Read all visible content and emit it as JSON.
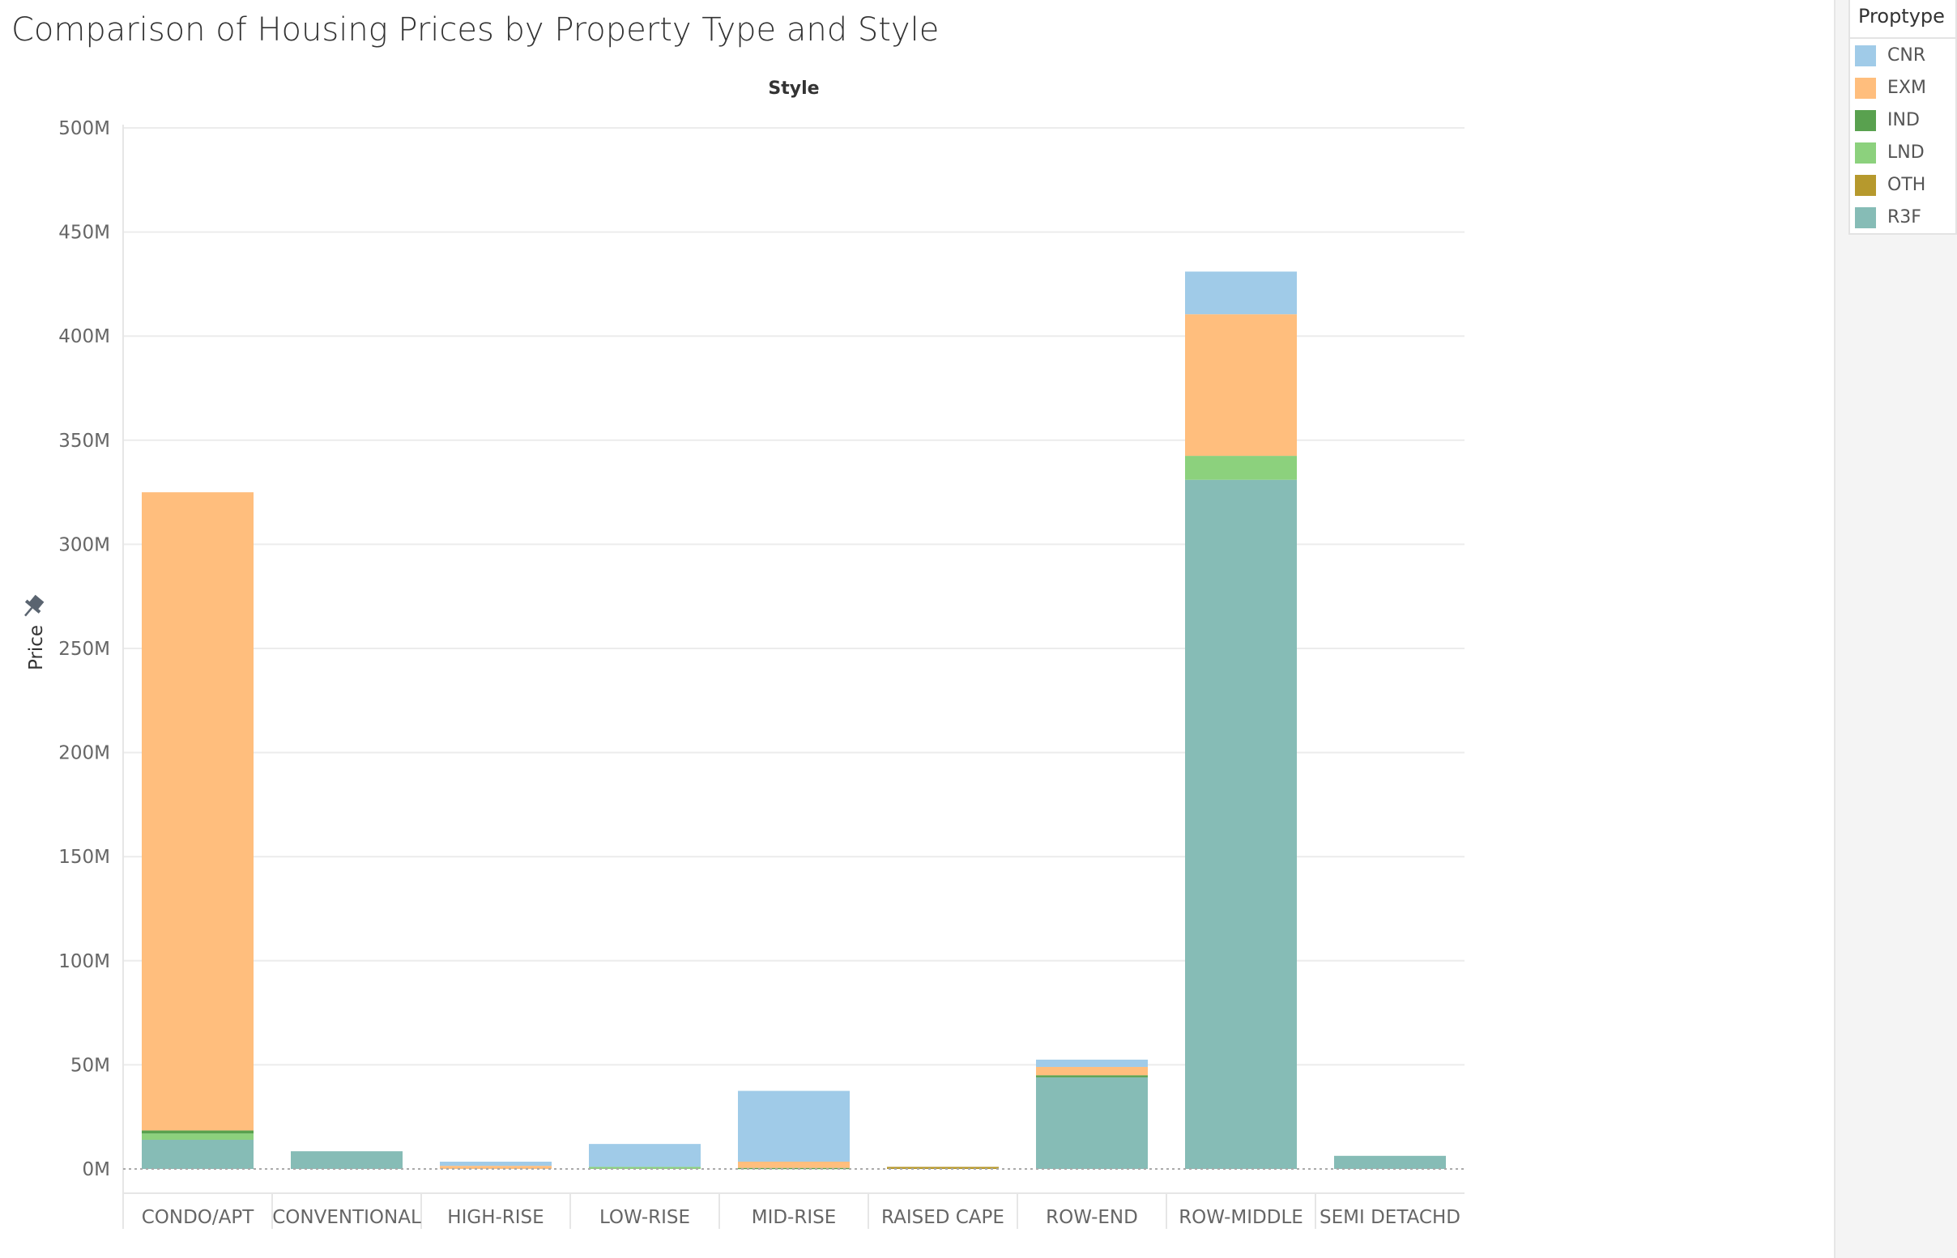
{
  "title": "Comparison of Housing Prices by Property Type and Style",
  "legend": {
    "title": "Proptype",
    "items": [
      {
        "label": "CNR",
        "color": "#A0CBE8"
      },
      {
        "label": "EXM",
        "color": "#FFBE7D"
      },
      {
        "label": "IND",
        "color": "#59A14F"
      },
      {
        "label": "LND",
        "color": "#8CD17D"
      },
      {
        "label": "OTH",
        "color": "#B6992D"
      },
      {
        "label": "R3F",
        "color": "#86BCB6"
      }
    ]
  },
  "chart_data": {
    "type": "bar",
    "stacked": true,
    "title": "Comparison of Housing Prices by Property Type and Style",
    "column_header": "Style",
    "ylabel": "Price",
    "xlabel": "",
    "ylim": [
      0,
      500000000
    ],
    "yticks": [
      {
        "value": 0,
        "label": "0M"
      },
      {
        "value": 50000000,
        "label": "50M"
      },
      {
        "value": 100000000,
        "label": "100M"
      },
      {
        "value": 150000000,
        "label": "150M"
      },
      {
        "value": 200000000,
        "label": "200M"
      },
      {
        "value": 250000000,
        "label": "250M"
      },
      {
        "value": 300000000,
        "label": "300M"
      },
      {
        "value": 350000000,
        "label": "350M"
      },
      {
        "value": 400000000,
        "label": "400M"
      },
      {
        "value": 450000000,
        "label": "450M"
      },
      {
        "value": 500000000,
        "label": "500M"
      }
    ],
    "categories": [
      "CONDO/APT",
      "CONVENTIONAL",
      "HIGH-RISE",
      "LOW-RISE",
      "MID-RISE",
      "RAISED CAPE",
      "ROW-END",
      "ROW-MIDDLE",
      "SEMI DETACHD"
    ],
    "series": [
      {
        "name": "R3F",
        "color": "#86BCB6",
        "values": [
          14000000,
          8500000,
          0,
          0,
          0,
          0,
          44000000,
          331000000,
          6300000
        ]
      },
      {
        "name": "LND",
        "color": "#8CD17D",
        "values": [
          3000000,
          0,
          0,
          1000000,
          0,
          0,
          0,
          11500000,
          0
        ]
      },
      {
        "name": "IND",
        "color": "#59A14F",
        "values": [
          1500000,
          0,
          0,
          0,
          500000,
          0,
          1000000,
          0,
          0
        ]
      },
      {
        "name": "OTH",
        "color": "#B6992D",
        "values": [
          0,
          0,
          0,
          0,
          0,
          1000000,
          0,
          0,
          0
        ]
      },
      {
        "name": "EXM",
        "color": "#FFBE7D",
        "values": [
          306500000,
          0,
          1500000,
          0,
          3000000,
          0,
          4000000,
          68000000,
          0
        ]
      },
      {
        "name": "CNR",
        "color": "#A0CBE8",
        "values": [
          0,
          0,
          2000000,
          11000000,
          34000000,
          0,
          3500000,
          20500000,
          0
        ]
      }
    ],
    "grid": true,
    "legend_position": "right"
  }
}
